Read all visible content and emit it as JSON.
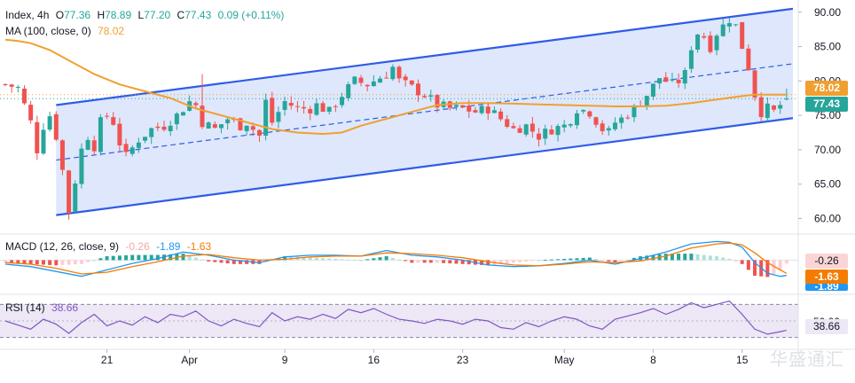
{
  "header": {
    "symbol": "Index, 4h",
    "open_label": "O",
    "open": "77.36",
    "high_label": "H",
    "high": "78.89",
    "low_label": "L",
    "low": "77.20",
    "close_label": "C",
    "close": "77.43",
    "change": "0.09 (+0.11%)",
    "ma_label": "MA (100, close, 0)",
    "ma_value": "78.02",
    "macd_label": "MACD (12, 26, close, 9)",
    "macd_hist": "-0.26",
    "macd_macd": "-1.89",
    "macd_signal": "-1.63",
    "rsi_label": "RSI (14)",
    "rsi_value": "38.66"
  },
  "badges": {
    "ma": "78.02",
    "price": "77.43",
    "macd_hist": "-0.26",
    "macd_signal": "-1.63",
    "macd_macd": "-1.89",
    "rsi_level": "50.00",
    "rsi": "38.66"
  },
  "colors": {
    "up": "#26a69a",
    "down": "#ef5350",
    "ma": "#f0a030",
    "channel": "#2f5ce8",
    "channel_fill": "#d8e3fb",
    "macd": "#2196f3",
    "signal": "#f57c00",
    "rsi": "#7e57c2",
    "rsi_band": "#ede7f6",
    "price_badge": "#26a69a"
  },
  "watermark": "华盛通汇",
  "chart_data": [
    {
      "type": "candlestick",
      "title": "Index, 4h",
      "y_ticks": [
        "90.00",
        "85.00",
        "80.00",
        "75.00",
        "70.00",
        "65.00",
        "60.00"
      ],
      "ylim": [
        58,
        91
      ],
      "x_ticks": [
        {
          "label": "21",
          "x": 16
        },
        {
          "label": "Apr",
          "x": 29
        },
        {
          "label": "9",
          "x": 44
        },
        {
          "label": "16",
          "x": 58
        },
        {
          "label": "23",
          "x": 72
        },
        {
          "label": "May",
          "x": 88
        },
        {
          "label": "8",
          "x": 102
        },
        {
          "label": "15",
          "x": 116
        }
      ],
      "xlim": [
        0,
        124
      ],
      "anchors": [
        [
          0,
          79.5
        ],
        [
          2,
          79
        ],
        [
          4,
          74
        ],
        [
          5,
          70
        ],
        [
          6,
          73.5
        ],
        [
          7,
          75
        ],
        [
          8,
          72
        ],
        [
          9,
          67
        ],
        [
          10,
          61
        ],
        [
          12,
          70
        ],
        [
          13,
          72
        ],
        [
          14,
          70.5
        ],
        [
          15,
          74
        ],
        [
          16,
          75
        ],
        [
          17,
          74
        ],
        [
          18,
          71
        ],
        [
          19,
          69
        ],
        [
          21,
          71.5
        ],
        [
          23,
          73
        ],
        [
          25,
          73.5
        ],
        [
          27,
          75
        ],
        [
          28,
          76
        ],
        [
          29,
          77
        ],
        [
          30,
          76.5
        ],
        [
          31,
          74
        ],
        [
          33,
          73
        ],
        [
          35,
          74.5
        ],
        [
          37,
          73.5
        ],
        [
          38,
          74
        ],
        [
          39,
          73
        ],
        [
          40,
          72
        ],
        [
          41,
          77
        ],
        [
          42,
          74
        ],
        [
          44,
          77
        ],
        [
          46,
          76
        ],
        [
          48,
          76
        ],
        [
          49,
          76.5
        ],
        [
          51,
          75.5
        ],
        [
          53,
          78
        ],
        [
          55,
          80
        ],
        [
          57,
          79.5
        ],
        [
          59,
          80.5
        ],
        [
          60,
          81
        ],
        [
          61,
          82
        ],
        [
          62,
          80
        ],
        [
          63,
          79.5
        ],
        [
          64,
          79
        ],
        [
          66,
          78
        ],
        [
          68,
          76.5
        ],
        [
          70,
          76
        ],
        [
          72,
          76
        ],
        [
          74,
          75.5
        ],
        [
          76,
          76
        ],
        [
          78,
          74.5
        ],
        [
          80,
          73
        ],
        [
          82,
          73.5
        ],
        [
          84,
          72
        ],
        [
          86,
          73
        ],
        [
          88,
          73.5
        ],
        [
          89,
          74.5
        ],
        [
          90,
          76
        ],
        [
          92,
          75.5
        ],
        [
          94,
          73
        ],
        [
          95,
          72.5
        ],
        [
          96,
          74
        ],
        [
          97,
          74.5
        ],
        [
          99,
          76
        ],
        [
          101,
          78
        ],
        [
          103,
          80.5
        ],
        [
          104,
          80
        ],
        [
          105,
          79.5
        ],
        [
          106,
          80
        ],
        [
          107,
          81
        ],
        [
          108,
          85
        ],
        [
          109,
          87
        ],
        [
          110,
          86.5
        ],
        [
          111,
          85
        ],
        [
          112,
          87
        ],
        [
          113,
          88
        ],
        [
          114,
          89
        ],
        [
          115,
          88
        ],
        [
          116,
          85
        ],
        [
          117,
          82
        ],
        [
          118,
          78
        ],
        [
          119,
          75.5
        ],
        [
          120,
          76
        ],
        [
          121,
          75.5
        ],
        [
          122,
          76.5
        ],
        [
          123,
          77.43
        ]
      ],
      "ma100": [
        [
          0,
          86
        ],
        [
          2,
          85.8
        ],
        [
          4,
          85.5
        ],
        [
          7,
          84.5
        ],
        [
          10,
          83
        ],
        [
          14,
          81
        ],
        [
          18,
          79.5
        ],
        [
          22,
          78.5
        ],
        [
          26,
          77.5
        ],
        [
          30,
          76
        ],
        [
          34,
          75
        ],
        [
          38,
          74
        ],
        [
          42,
          73
        ],
        [
          46,
          72.5
        ],
        [
          50,
          72.3
        ],
        [
          53,
          72.5
        ],
        [
          56,
          73.5
        ],
        [
          60,
          74.5
        ],
        [
          64,
          75.5
        ],
        [
          68,
          76.5
        ],
        [
          72,
          76.8
        ],
        [
          76,
          76.8
        ],
        [
          80,
          76.7
        ],
        [
          84,
          76.6
        ],
        [
          88,
          76.5
        ],
        [
          92,
          76.4
        ],
        [
          96,
          76.3
        ],
        [
          100,
          76.3
        ],
        [
          104,
          76.4
        ],
        [
          108,
          76.8
        ],
        [
          112,
          77.3
        ],
        [
          116,
          77.8
        ],
        [
          118,
          78
        ],
        [
          120,
          78
        ],
        [
          123,
          78.02
        ]
      ],
      "channel": {
        "upper": [
          [
            8,
            76.5
          ],
          [
            124,
            90.5
          ]
        ],
        "lower": [
          [
            8,
            60.5
          ],
          [
            124,
            74.6
          ]
        ],
        "mid": [
          [
            8,
            68.5
          ],
          [
            124,
            82.5
          ]
        ]
      }
    },
    {
      "type": "macd",
      "title": "MACD (12, 26, close, 9)",
      "ylim": [
        -4,
        3
      ],
      "macd": [
        [
          0,
          -0.5
        ],
        [
          4,
          -0.8
        ],
        [
          8,
          -1.4
        ],
        [
          12,
          -2
        ],
        [
          16,
          -1.2
        ],
        [
          20,
          -0.4
        ],
        [
          24,
          0.2
        ],
        [
          28,
          1
        ],
        [
          32,
          0.6
        ],
        [
          36,
          0
        ],
        [
          40,
          -0.3
        ],
        [
          44,
          0.4
        ],
        [
          48,
          0.6
        ],
        [
          52,
          0.6
        ],
        [
          56,
          0.5
        ],
        [
          60,
          1.2
        ],
        [
          64,
          0.6
        ],
        [
          68,
          0.4
        ],
        [
          72,
          0
        ],
        [
          76,
          -0.6
        ],
        [
          80,
          -0.8
        ],
        [
          84,
          -0.7
        ],
        [
          88,
          -0.4
        ],
        [
          92,
          0
        ],
        [
          96,
          -0.5
        ],
        [
          100,
          0.2
        ],
        [
          104,
          1
        ],
        [
          108,
          2
        ],
        [
          112,
          2.3
        ],
        [
          114,
          2.2
        ],
        [
          116,
          1.6
        ],
        [
          118,
          -0.3
        ],
        [
          120,
          -1.6
        ],
        [
          122,
          -2
        ],
        [
          123,
          -1.89
        ]
      ],
      "signal": [
        [
          0,
          -0.3
        ],
        [
          4,
          -0.5
        ],
        [
          8,
          -1
        ],
        [
          12,
          -1.7
        ],
        [
          16,
          -1.5
        ],
        [
          20,
          -0.8
        ],
        [
          24,
          -0.2
        ],
        [
          28,
          0.5
        ],
        [
          32,
          0.7
        ],
        [
          36,
          0.3
        ],
        [
          40,
          0
        ],
        [
          44,
          0.1
        ],
        [
          48,
          0.4
        ],
        [
          52,
          0.5
        ],
        [
          56,
          0.5
        ],
        [
          60,
          0.9
        ],
        [
          64,
          0.8
        ],
        [
          68,
          0.6
        ],
        [
          72,
          0.3
        ],
        [
          76,
          -0.2
        ],
        [
          80,
          -0.6
        ],
        [
          84,
          -0.7
        ],
        [
          88,
          -0.5
        ],
        [
          92,
          -0.2
        ],
        [
          96,
          -0.3
        ],
        [
          100,
          -0.1
        ],
        [
          104,
          0.5
        ],
        [
          108,
          1.5
        ],
        [
          112,
          2
        ],
        [
          114,
          2.1
        ],
        [
          116,
          1.9
        ],
        [
          118,
          0.9
        ],
        [
          120,
          -0.3
        ],
        [
          122,
          -1.2
        ],
        [
          123,
          -1.63
        ]
      ]
    },
    {
      "type": "line",
      "title": "RSI (14)",
      "ylim": [
        20,
        80
      ],
      "levels": [
        70,
        50,
        30
      ],
      "values": [
        [
          0,
          50
        ],
        [
          2,
          45
        ],
        [
          4,
          40
        ],
        [
          6,
          52
        ],
        [
          8,
          46
        ],
        [
          10,
          35
        ],
        [
          12,
          48
        ],
        [
          14,
          58
        ],
        [
          16,
          44
        ],
        [
          18,
          50
        ],
        [
          20,
          45
        ],
        [
          22,
          55
        ],
        [
          24,
          48
        ],
        [
          26,
          58
        ],
        [
          28,
          55
        ],
        [
          30,
          62
        ],
        [
          32,
          50
        ],
        [
          34,
          44
        ],
        [
          36,
          52
        ],
        [
          38,
          47
        ],
        [
          40,
          43
        ],
        [
          42,
          60
        ],
        [
          44,
          50
        ],
        [
          46,
          55
        ],
        [
          48,
          52
        ],
        [
          50,
          58
        ],
        [
          52,
          53
        ],
        [
          54,
          64
        ],
        [
          56,
          60
        ],
        [
          58,
          65
        ],
        [
          60,
          58
        ],
        [
          62,
          52
        ],
        [
          64,
          50
        ],
        [
          66,
          47
        ],
        [
          68,
          52
        ],
        [
          70,
          50
        ],
        [
          72,
          46
        ],
        [
          74,
          52
        ],
        [
          76,
          50
        ],
        [
          78,
          42
        ],
        [
          80,
          40
        ],
        [
          82,
          48
        ],
        [
          84,
          43
        ],
        [
          86,
          50
        ],
        [
          88,
          55
        ],
        [
          90,
          52
        ],
        [
          92,
          44
        ],
        [
          94,
          40
        ],
        [
          96,
          52
        ],
        [
          98,
          56
        ],
        [
          100,
          60
        ],
        [
          102,
          65
        ],
        [
          104,
          58
        ],
        [
          106,
          64
        ],
        [
          108,
          72
        ],
        [
          110,
          66
        ],
        [
          112,
          70
        ],
        [
          114,
          74
        ],
        [
          116,
          58
        ],
        [
          118,
          40
        ],
        [
          120,
          34
        ],
        [
          122,
          37
        ],
        [
          123,
          38.66
        ]
      ]
    }
  ]
}
